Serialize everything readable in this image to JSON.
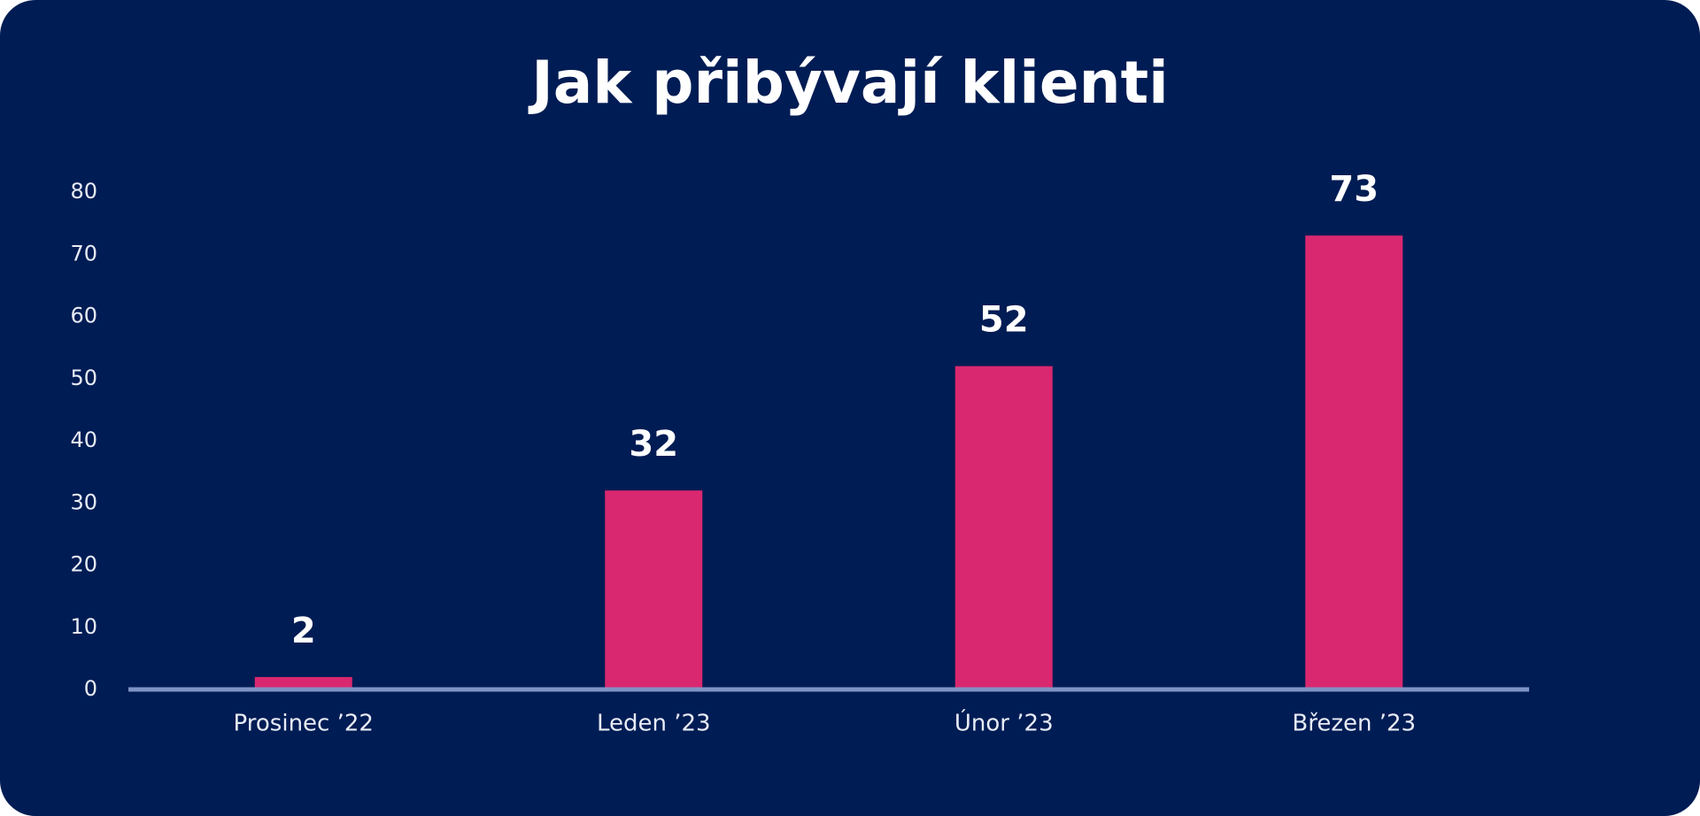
{
  "chart_data": {
    "type": "bar",
    "title": "Jak přibývají klienti",
    "categories": [
      "Prosinec ’22",
      "Leden ’23",
      "Únor ’23",
      "Březen ’23"
    ],
    "values": [
      2,
      32,
      52,
      73
    ],
    "color": "#d9286f",
    "ylim": [
      0,
      80
    ],
    "yticks": [
      0,
      10,
      20,
      30,
      40,
      50,
      60,
      70,
      80
    ],
    "grid": false
  }
}
